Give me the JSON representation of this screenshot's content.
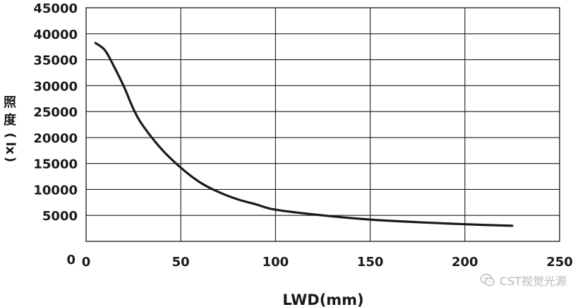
{
  "chart_data": {
    "type": "line",
    "title": "",
    "xlabel": "LWD(mm)",
    "ylabel": [
      "照",
      "度",
      "(",
      "lx",
      ")"
    ],
    "xlim": [
      0,
      250
    ],
    "ylim": [
      0,
      45000
    ],
    "x_ticks": [
      0,
      50,
      100,
      150,
      200,
      250
    ],
    "y_ticks": [
      5000,
      10000,
      15000,
      20000,
      25000,
      30000,
      35000,
      40000,
      45000
    ],
    "y_zero_label": "0",
    "grid": true,
    "series": [
      {
        "color": "#1a1a1a",
        "x": [
          5,
          10,
          15,
          20,
          25,
          30,
          40,
          50,
          60,
          70,
          80,
          90,
          100,
          125,
          150,
          175,
          200,
          225
        ],
        "y": [
          38200,
          36800,
          33500,
          29800,
          25500,
          22300,
          17700,
          14200,
          11400,
          9500,
          8100,
          7100,
          6100,
          5000,
          4200,
          3700,
          3300,
          3000
        ]
      }
    ]
  },
  "watermark": {
    "text": "CST视觉光源",
    "icon": "wechat-icon"
  }
}
